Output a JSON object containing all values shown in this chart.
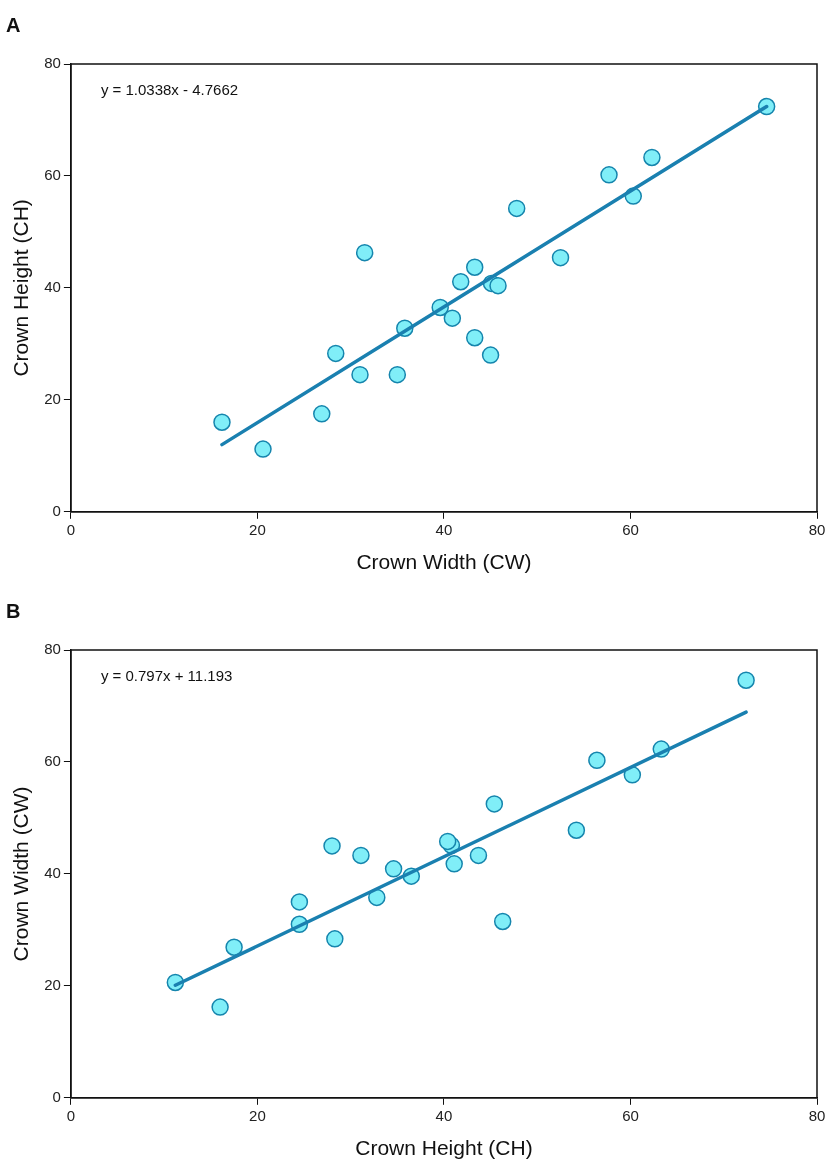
{
  "chart_data": [
    {
      "type": "scatter",
      "title": "A",
      "xlabel": "Crown Width (CW)",
      "ylabel": "Crown Height (CH)",
      "annotations": [
        "y = 1.0338x - 4.7662"
      ],
      "xlim": [
        0,
        80
      ],
      "ylim": [
        0,
        80
      ],
      "xticks": [
        0,
        20,
        40,
        60,
        80
      ],
      "yticks": [
        0,
        20,
        40,
        60,
        80
      ],
      "grid": false,
      "legend": false,
      "series": [
        {
          "type": "scatter",
          "marker": "circle",
          "color": "#80eef8",
          "x": [
            16.2,
            20.6,
            26.9,
            28.4,
            31,
            31.5,
            35,
            35.8,
            39.6,
            40.9,
            41.8,
            43.3,
            43.3,
            45.1,
            45.8,
            45,
            47.8,
            52.5,
            57.7,
            60.3,
            62.3,
            74.6
          ],
          "values": [
            16,
            11.2,
            17.5,
            28.3,
            24.5,
            46.3,
            24.5,
            32.8,
            36.5,
            34.6,
            41.1,
            43.7,
            31.1,
            40.8,
            40.4,
            28,
            54.2,
            45.4,
            60.2,
            56.4,
            63.3,
            72.4
          ]
        },
        {
          "type": "line",
          "marker": "none",
          "color": "#1a80b0",
          "x": [
            16.2,
            74.6
          ],
          "values": [
            12,
            72.4
          ]
        }
      ]
    },
    {
      "type": "scatter",
      "title": "B",
      "xlabel": "Crown Height (CH)",
      "ylabel": "Crown Width (CW)",
      "annotations": [
        "y = 0.797x + 11.193"
      ],
      "xlim": [
        0,
        80
      ],
      "ylim": [
        0,
        80
      ],
      "xticks": [
        0,
        20,
        40,
        60,
        80
      ],
      "yticks": [
        0,
        20,
        40,
        60,
        80
      ],
      "grid": false,
      "legend": false,
      "series": [
        {
          "type": "scatter",
          "marker": "circle",
          "color": "#80eef8",
          "x": [
            16,
            11.2,
            17.5,
            28.3,
            24.5,
            46.3,
            24.5,
            32.8,
            36.5,
            34.6,
            41.1,
            43.7,
            31.1,
            40.8,
            40.4,
            28,
            54.2,
            45.4,
            60.2,
            56.4,
            63.3,
            72.4
          ],
          "values": [
            16.2,
            20.6,
            26.9,
            28.4,
            31,
            31.5,
            35,
            35.8,
            39.6,
            40.9,
            41.8,
            43.3,
            43.3,
            45.1,
            45.8,
            45,
            47.8,
            52.5,
            57.7,
            60.3,
            62.3,
            74.6
          ]
        },
        {
          "type": "line",
          "marker": "none",
          "color": "#1a80b0",
          "x": [
            11.2,
            72.4
          ],
          "values": [
            20.1,
            68.9
          ]
        }
      ]
    }
  ]
}
